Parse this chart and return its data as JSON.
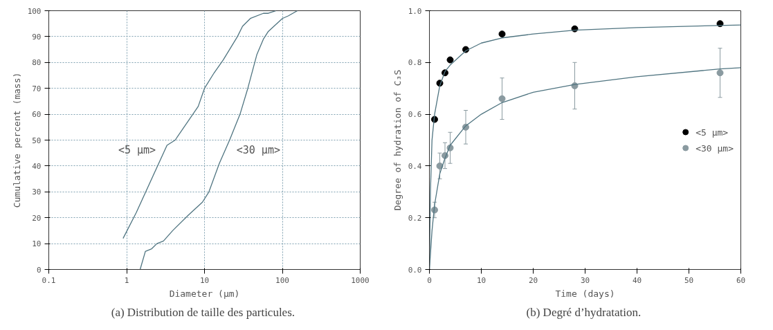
{
  "chart_data": [
    {
      "type": "line",
      "xlabel": "Diameter (µm)",
      "ylabel": "Cumulative percent (mass)",
      "log": "x",
      "xlim": [
        0.1,
        1000
      ],
      "xticks": [
        0.1,
        1,
        10,
        100,
        1000
      ],
      "ylim": [
        0,
        100
      ],
      "yticks": [
        0,
        10,
        20,
        30,
        40,
        50,
        60,
        70,
        80,
        90,
        100
      ],
      "grid": true,
      "line_style": "solid",
      "series": [
        {
          "name": "<5 µm>",
          "color": "#4f7480",
          "x": [
            0.9,
            1.33,
            3.3,
            4.2,
            8.3,
            10,
            13.3,
            17.4,
            26.5,
            30.8,
            38.8,
            57,
            66,
            83
          ],
          "values": [
            12,
            22,
            48,
            50,
            63,
            70,
            76,
            81,
            90,
            94,
            97,
            99,
            99,
            100
          ]
        },
        {
          "name": "<30 µm>",
          "color": "#4f7480",
          "x": [
            1.49,
            1.74,
            2.1,
            2.45,
            2.97,
            3.9,
            6.2,
            9.4,
            11.4,
            15.5,
            21,
            28.6,
            36,
            47,
            57,
            66,
            100,
            119,
            156
          ],
          "values": [
            0,
            7,
            8,
            10,
            11,
            15,
            21,
            26,
            30,
            41,
            50,
            60,
            70,
            83,
            89,
            92,
            97,
            98,
            100
          ]
        }
      ],
      "annotations": [
        "(a)  Distribution de taille des particules."
      ]
    },
    {
      "type": "scatter",
      "xlabel": "Time (days)",
      "ylabel": "Degree of hydration of C₃S",
      "xlim": [
        0,
        60
      ],
      "xticks": [
        0,
        10,
        20,
        30,
        40,
        50,
        60
      ],
      "ylim": [
        0,
        1
      ],
      "yticks": [
        {
          "value": 0,
          "label": "0.0"
        },
        0.2,
        0.4,
        0.6,
        0.8,
        {
          "value": 1,
          "label": "1.0"
        }
      ],
      "grid": false,
      "legend": "right",
      "series": [
        {
          "name": "<5 µm>",
          "marker": "circle",
          "color": "#000000",
          "x": [
            1,
            2,
            3,
            4,
            7,
            14,
            28,
            56
          ],
          "values": [
            0.58,
            0.72,
            0.76,
            0.81,
            0.85,
            0.91,
            0.93,
            0.95
          ]
        },
        {
          "name": "<30 µm>",
          "marker": "circle",
          "color": "#8a9aa0",
          "x": [
            1,
            2,
            3,
            4,
            7,
            14,
            28,
            56
          ],
          "values": [
            0.23,
            0.4,
            0.44,
            0.47,
            0.55,
            0.66,
            0.71,
            0.76
          ],
          "errors": [
            0.03,
            0.05,
            0.05,
            0.06,
            0.065,
            0.08,
            0.09,
            0.095
          ]
        },
        {
          "type": "line",
          "color": "#4f7480",
          "x": [
            0,
            0.2,
            0.5,
            1,
            2,
            3,
            4,
            7,
            10,
            14,
            20,
            28,
            40,
            60
          ],
          "values": [
            0,
            0.3,
            0.5,
            0.6,
            0.71,
            0.765,
            0.79,
            0.845,
            0.875,
            0.895,
            0.91,
            0.925,
            0.935,
            0.945
          ]
        },
        {
          "type": "line",
          "color": "#4f7480",
          "x": [
            0,
            0.5,
            1,
            2,
            3,
            4,
            7,
            10,
            14,
            20,
            28,
            40,
            56,
            60
          ],
          "values": [
            0,
            0.15,
            0.25,
            0.37,
            0.43,
            0.48,
            0.555,
            0.6,
            0.645,
            0.685,
            0.715,
            0.745,
            0.775,
            0.78
          ]
        }
      ],
      "annotations": [
        "(b)  Degré d’hydratation."
      ]
    }
  ]
}
